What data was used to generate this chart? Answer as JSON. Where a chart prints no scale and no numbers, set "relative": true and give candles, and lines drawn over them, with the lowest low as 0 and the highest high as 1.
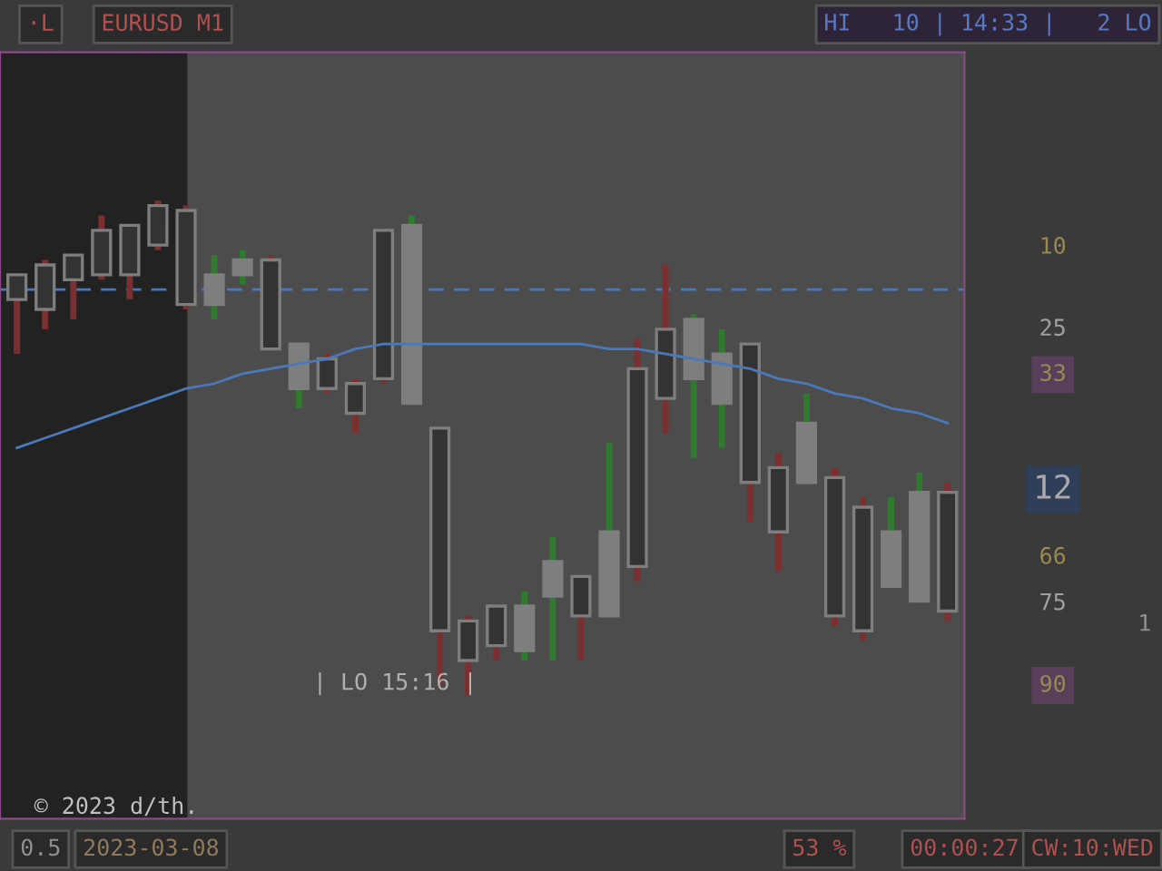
{
  "chart_data": {
    "type": "candlestick",
    "relative": true,
    "categories": [
      null,
      null,
      null,
      null,
      null,
      null,
      null,
      null,
      null,
      null,
      null,
      null,
      null,
      null,
      null,
      null,
      null,
      null,
      null,
      null,
      null,
      null,
      null,
      null,
      null,
      null,
      null,
      null,
      null,
      null,
      null,
      null,
      null,
      null
    ],
    "ohlc": [
      [
        0.85,
        0.85,
        0.69,
        0.8
      ],
      [
        0.87,
        0.88,
        0.74,
        0.78
      ],
      [
        0.89,
        0.89,
        0.76,
        0.84
      ],
      [
        0.94,
        0.97,
        0.84,
        0.85
      ],
      [
        0.95,
        0.95,
        0.8,
        0.85
      ],
      [
        0.99,
        1.0,
        0.9,
        0.91
      ],
      [
        0.98,
        0.99,
        0.78,
        0.79
      ],
      [
        0.79,
        0.89,
        0.76,
        0.85
      ],
      [
        0.85,
        0.9,
        0.83,
        0.88
      ],
      [
        0.88,
        0.89,
        0.7,
        0.7
      ],
      [
        0.62,
        0.71,
        0.58,
        0.71
      ],
      [
        0.68,
        0.69,
        0.61,
        0.62
      ],
      [
        0.63,
        0.64,
        0.53,
        0.57
      ],
      [
        0.94,
        0.94,
        0.63,
        0.64
      ],
      [
        0.59,
        0.97,
        0.59,
        0.95
      ],
      [
        0.54,
        0.54,
        0.02,
        0.13
      ],
      [
        0.15,
        0.16,
        0.0,
        0.07
      ],
      [
        0.18,
        0.18,
        0.07,
        0.1
      ],
      [
        0.09,
        0.21,
        0.07,
        0.18
      ],
      [
        0.2,
        0.32,
        0.07,
        0.27
      ],
      [
        0.24,
        0.24,
        0.07,
        0.16
      ],
      [
        0.16,
        0.51,
        0.16,
        0.33
      ],
      [
        0.66,
        0.72,
        0.23,
        0.26
      ],
      [
        0.74,
        0.87,
        0.53,
        0.6
      ],
      [
        0.64,
        0.77,
        0.48,
        0.76
      ],
      [
        0.59,
        0.74,
        0.5,
        0.69
      ],
      [
        0.71,
        0.71,
        0.35,
        0.43
      ],
      [
        0.46,
        0.49,
        0.25,
        0.33
      ],
      [
        0.43,
        0.61,
        0.43,
        0.55
      ],
      [
        0.44,
        0.46,
        0.14,
        0.16
      ],
      [
        0.38,
        0.4,
        0.11,
        0.13
      ],
      [
        0.22,
        0.4,
        0.22,
        0.33
      ],
      [
        0.19,
        0.45,
        0.19,
        0.41
      ],
      [
        0.41,
        0.43,
        0.15,
        0.17
      ]
    ],
    "color": "#7e7e7e",
    "series": [
      {
        "type": "line",
        "color": "#4a78b8",
        "values": [
          0.5,
          0.52,
          0.54,
          0.56,
          0.58,
          0.6,
          0.62,
          0.63,
          0.65,
          0.66,
          0.67,
          0.68,
          0.7,
          0.71,
          0.71,
          0.71,
          0.71,
          0.71,
          0.71,
          0.71,
          0.71,
          0.7,
          0.7,
          0.69,
          0.68,
          0.67,
          0.66,
          0.64,
          0.63,
          0.61,
          0.6,
          0.58,
          0.57,
          0.55
        ]
      }
    ],
    "ref_lines": [
      {
        "axis": "y",
        "value": 0.82,
        "color": "#4a78b8",
        "line_style": "dashed"
      }
    ],
    "annotations": [
      "·L",
      "EURUSD M1",
      "HI   10 | 14:33 |   2 LO",
      "| LO 15:16 |",
      "© 2023 d/th.",
      "0.5",
      "2023-03-08",
      "53 %",
      "00:00:27",
      "CW:10:WED",
      "10",
      "25",
      "33",
      "12",
      "66",
      "75",
      "90",
      "1"
    ]
  }
}
